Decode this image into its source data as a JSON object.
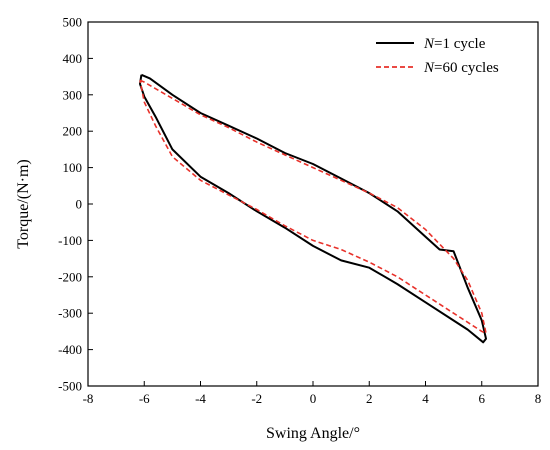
{
  "chart_data": {
    "type": "line",
    "xlabel": "Swing Angle/°",
    "ylabel": "Torque/(N·m)",
    "xlim": [
      -8,
      8
    ],
    "ylim": [
      -500,
      500
    ],
    "xticks": [
      -8,
      -6,
      -4,
      -2,
      0,
      2,
      4,
      6,
      8
    ],
    "yticks": [
      -500,
      -400,
      -300,
      -200,
      -100,
      0,
      100,
      200,
      300,
      400,
      500
    ],
    "grid": false,
    "legend_position": "top-right",
    "series": [
      {
        "name_prefix": "N",
        "name_suffix": "=1 cycle",
        "color": "#000000",
        "style": "solid",
        "x": [
          -6.1,
          -5.8,
          -5.0,
          -4.0,
          -3.0,
          -2.0,
          -1.0,
          0.0,
          1.0,
          2.0,
          2.3,
          3.0,
          4.0,
          4.5,
          5.0,
          5.5,
          6.0,
          6.15,
          6.05,
          5.5,
          5.0,
          4.0,
          3.0,
          2.0,
          1.0,
          0.0,
          -1.0,
          -2.0,
          -3.0,
          -4.0,
          -5.0,
          -5.6,
          -6.0,
          -6.15,
          -6.1
        ],
        "y": [
          355,
          345,
          300,
          250,
          215,
          180,
          140,
          110,
          70,
          30,
          15,
          -20,
          -90,
          -125,
          -130,
          -230,
          -320,
          -370,
          -380,
          -345,
          -320,
          -270,
          -220,
          -175,
          -155,
          -115,
          -65,
          -20,
          30,
          75,
          150,
          240,
          295,
          330,
          355
        ]
      },
      {
        "name_prefix": "N",
        "name_suffix": "=60 cycles",
        "color": "#e8312a",
        "style": "dashed",
        "x": [
          -6.15,
          -6.0,
          -5.0,
          -4.0,
          -3.0,
          -2.0,
          -1.0,
          0.0,
          1.0,
          2.0,
          3.0,
          4.0,
          5.0,
          5.5,
          6.0,
          6.15,
          6.0,
          5.0,
          4.0,
          3.0,
          2.0,
          1.0,
          0.0,
          -1.0,
          -2.0,
          -3.0,
          -4.0,
          -5.0,
          -5.6,
          -6.0,
          -6.15
        ],
        "y": [
          340,
          335,
          290,
          245,
          210,
          170,
          135,
          100,
          65,
          30,
          -10,
          -70,
          -150,
          -210,
          -300,
          -355,
          -350,
          -300,
          -250,
          -200,
          -160,
          -125,
          -100,
          -60,
          -15,
          25,
          65,
          130,
          215,
          280,
          340
        ]
      }
    ]
  }
}
